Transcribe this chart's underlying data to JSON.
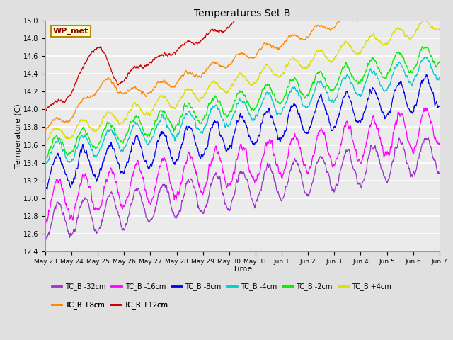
{
  "title": "Temperatures Set B",
  "xlabel": "Time",
  "ylabel": "Temperature (C)",
  "ylim": [
    12.4,
    15.0
  ],
  "series_order": [
    "TC_B -32cm",
    "TC_B -16cm",
    "TC_B -8cm",
    "TC_B -4cm",
    "TC_B -2cm",
    "TC_B +4cm",
    "TC_B +8cm",
    "TC_B +12cm"
  ],
  "series": {
    "TC_B -32cm": {
      "color": "#9933CC",
      "base": 12.72,
      "trend": 0.00055,
      "amp": 0.2,
      "noise": 0.04,
      "phase": 1.5
    },
    "TC_B -16cm": {
      "color": "#FF00FF",
      "base": 12.95,
      "trend": 0.0006,
      "amp": 0.22,
      "noise": 0.05,
      "phase": 1.5
    },
    "TC_B -8cm": {
      "color": "#0000EE",
      "base": 13.28,
      "trend": 0.00065,
      "amp": 0.18,
      "noise": 0.04,
      "phase": 1.3
    },
    "TC_B -4cm": {
      "color": "#00CCCC",
      "base": 13.48,
      "trend": 0.0007,
      "amp": 0.13,
      "noise": 0.03,
      "phase": 1.2
    },
    "TC_B -2cm": {
      "color": "#00EE00",
      "base": 13.55,
      "trend": 0.00075,
      "amp": 0.12,
      "noise": 0.03,
      "phase": 1.1
    },
    "TC_B +4cm": {
      "color": "#DDDD00",
      "base": 13.68,
      "trend": 0.0009,
      "amp": 0.08,
      "noise": 0.025,
      "phase": 1.0
    },
    "TC_B +8cm": {
      "color": "#FF8800",
      "base": 13.8,
      "trend": 0.0011,
      "amp": 0.05,
      "noise": 0.02,
      "phase": 0.8
    },
    "TC_B +12cm": {
      "color": "#CC0000",
      "base": 14.0,
      "trend": 0.0014,
      "amp": 0.03,
      "noise": 0.02,
      "phase": 0.5
    }
  },
  "n_points": 1440,
  "tick_labels": [
    "May 23",
    "May 24",
    "May 25",
    "May 26",
    "May 27",
    "May 28",
    "May 29",
    "May 30",
    "May 31",
    "Jun 1",
    "Jun 2",
    "Jun 3",
    "Jun 4",
    "Jun 5",
    "Jun 6",
    "Jun 7"
  ],
  "wp_met_label": "WP_met",
  "background_color": "#E0E0E0",
  "plot_bg_color": "#EBEBEB",
  "grid_color": "#FFFFFF",
  "legend_row1": [
    "TC_B -32cm",
    "TC_B -16cm",
    "TC_B -8cm",
    "TC_B -4cm",
    "TC_B -2cm",
    "TC_B +4cm"
  ],
  "legend_row2": [
    "TC_B +8cm",
    "TC_B +12cm"
  ]
}
